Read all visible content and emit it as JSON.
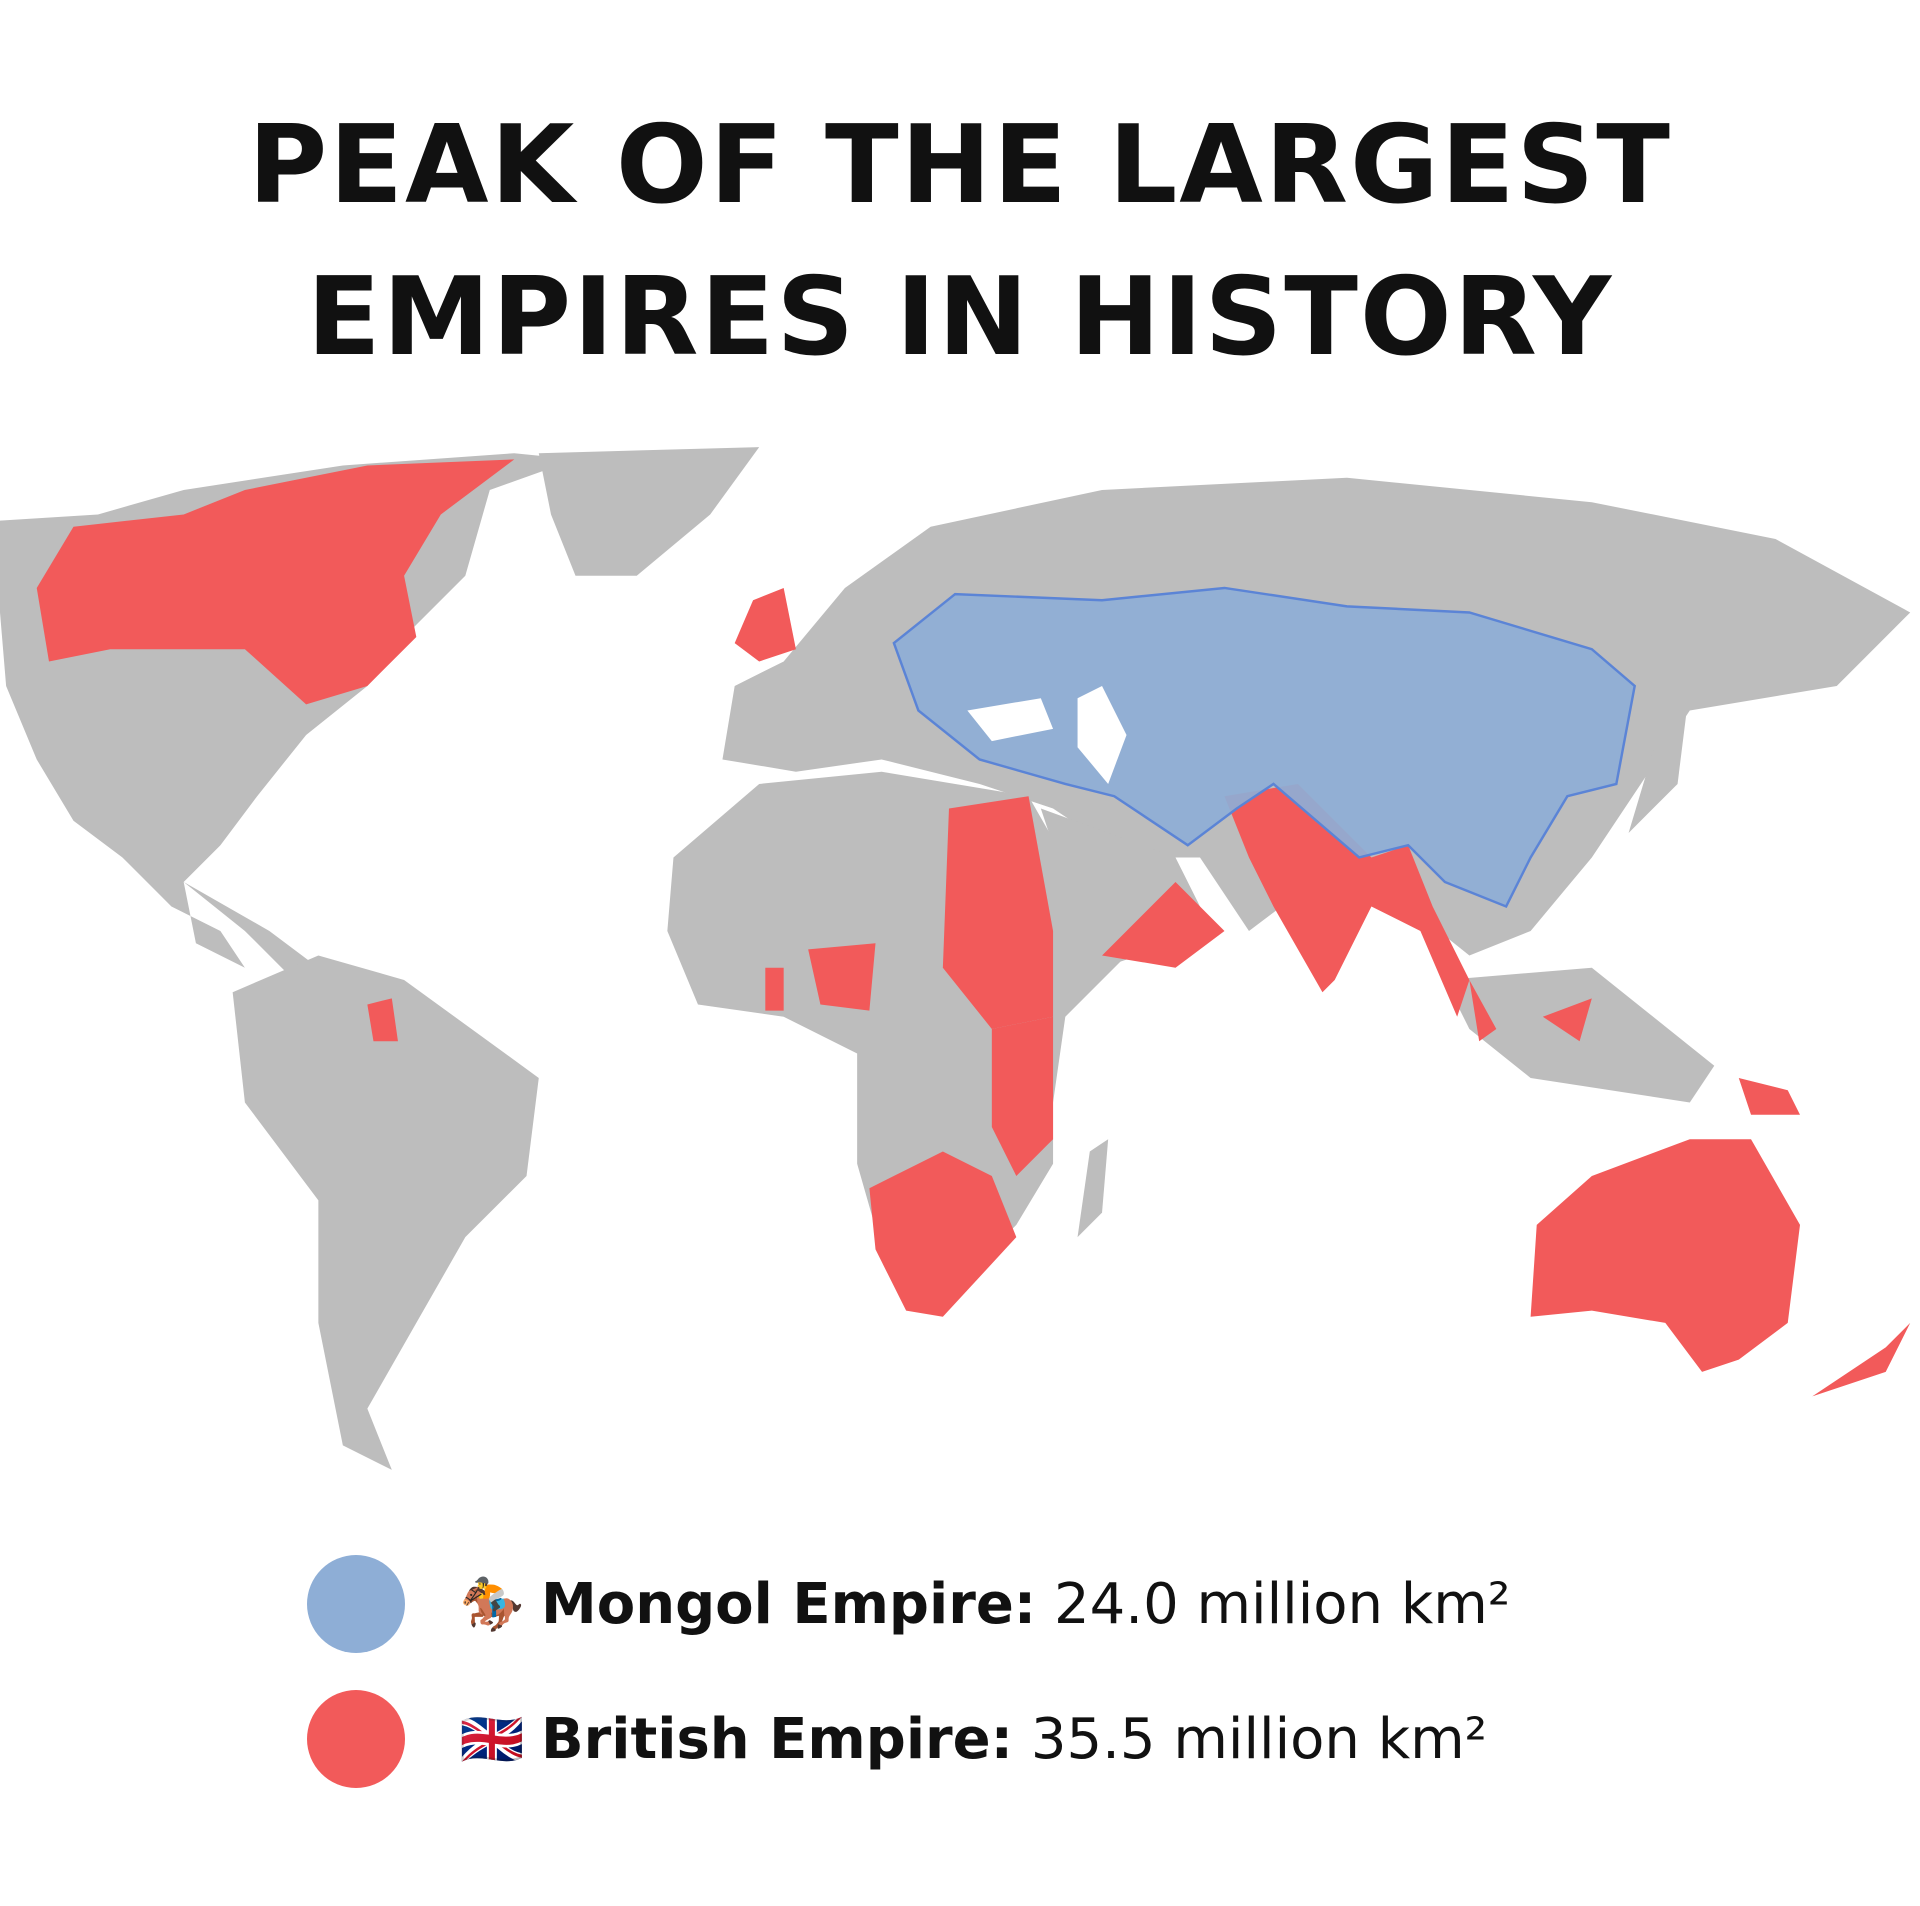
{
  "title_lines": [
    "PEAK OF THE LARGEST",
    "EMPIRES IN HISTORY"
  ],
  "colors": {
    "land": "#bdbdbd",
    "mongol": "#8eaed6",
    "mongol_border": "#5b84d6",
    "british": "#f25a5a"
  },
  "legend": [
    {
      "icon": "horse-rider-icon",
      "glyph": "🏇",
      "name": "Mongol Empire:",
      "value": "24.0 million km²",
      "color": "#8eaed6"
    },
    {
      "icon": "uk-flag-icon",
      "glyph": "🇬🇧",
      "name": "British Empire:",
      "value": "35.5 million km²",
      "color": "#f25a5a"
    }
  ]
}
